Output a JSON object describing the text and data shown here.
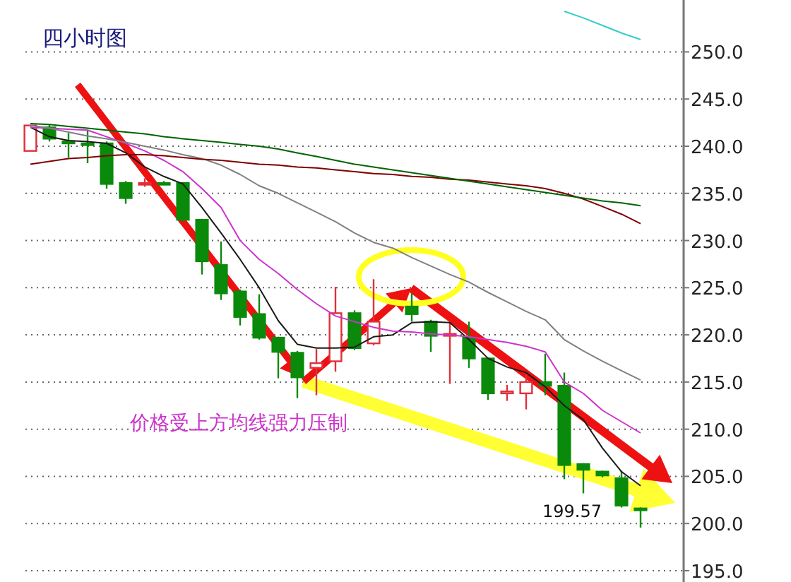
{
  "chart_data": {
    "type": "candlestick",
    "title": "四小时图",
    "annotations": [
      "价格受上方均线强力压制",
      "199.57"
    ],
    "categories": [
      null,
      null,
      null,
      null,
      null,
      null,
      null,
      null,
      null,
      null,
      null,
      null,
      null,
      null,
      null,
      null,
      null,
      null,
      null,
      null,
      null,
      null,
      null,
      null,
      null,
      null,
      null,
      null,
      null,
      null,
      null,
      null,
      null
    ],
    "ohlc": [
      [
        239.5,
        242.2,
        239.5,
        242.2
      ],
      [
        242.0,
        242.3,
        240.5,
        240.8
      ],
      [
        240.5,
        241.4,
        238.8,
        240.3
      ],
      [
        240.3,
        241.7,
        238.2,
        240.2
      ],
      [
        240.3,
        240.5,
        235.5,
        236.0
      ],
      [
        236.1,
        236.3,
        233.9,
        234.5
      ],
      [
        236.0,
        236.6,
        235.7,
        236.1
      ],
      [
        236.1,
        236.3,
        235.9,
        236.0
      ],
      [
        236.1,
        236.2,
        232.0,
        232.2
      ],
      [
        232.2,
        232.3,
        226.4,
        227.8
      ],
      [
        227.4,
        229.9,
        223.7,
        224.4
      ],
      [
        224.6,
        224.8,
        221.0,
        221.9
      ],
      [
        222.2,
        224.3,
        219.5,
        219.7
      ],
      [
        219.7,
        219.8,
        215.4,
        218.2
      ],
      [
        218.1,
        218.3,
        213.3,
        215.5
      ],
      [
        216.5,
        218.5,
        213.6,
        217.0
      ],
      [
        217.2,
        225.1,
        216.1,
        222.3
      ],
      [
        222.3,
        222.6,
        218.4,
        218.6
      ],
      [
        219.1,
        225.9,
        218.9,
        221.4
      ],
      null,
      [
        223.0,
        224.4,
        221.4,
        222.2
      ],
      [
        221.4,
        221.6,
        218.2,
        219.9
      ],
      [
        219.9,
        221.4,
        214.8,
        220.1
      ],
      [
        219.7,
        221.4,
        216.5,
        217.5
      ],
      [
        217.5,
        217.6,
        213.1,
        213.8
      ],
      [
        213.8,
        214.7,
        213.0,
        214.0
      ],
      [
        213.8,
        215.8,
        212.1,
        215.0
      ],
      [
        215.0,
        218.0,
        213.6,
        214.6
      ],
      [
        214.6,
        216.0,
        204.7,
        206.2
      ],
      [
        206.3,
        206.4,
        203.2,
        205.7
      ],
      [
        205.5,
        205.6,
        204.9,
        205.1
      ],
      [
        204.8,
        205.6,
        201.7,
        201.9
      ],
      [
        201.6,
        201.7,
        199.57,
        201.4
      ]
    ],
    "series": [
      {
        "type": "line",
        "color": "#1a1a1a",
        "values": [
          242.0,
          241.0,
          240.6,
          240.5,
          240.3,
          239.3,
          237.8,
          236.8,
          236.0,
          233.5,
          230.8,
          228.0,
          225.0,
          221.5,
          219.0,
          218.6,
          218.6,
          218.7,
          219.8,
          220.0,
          221.3,
          221.4,
          221.3,
          219.5,
          217.5,
          216.6,
          216.0,
          214.5,
          212.5,
          211.0,
          208.0,
          205.5,
          204.0
        ]
      },
      {
        "type": "line",
        "color": "#cc33cc",
        "values": [
          242.0,
          241.9,
          241.8,
          241.7,
          241.0,
          240.3,
          239.5,
          238.5,
          237.3,
          235.5,
          233.5,
          230.0,
          228.0,
          226.5,
          224.8,
          223.3,
          222.0,
          221.4,
          220.8,
          220.4,
          220.3,
          220.1,
          220.0,
          219.8,
          219.5,
          219.2,
          218.8,
          218.2,
          215.0,
          213.8,
          212.0,
          210.8,
          209.6
        ]
      },
      {
        "type": "line",
        "color": "#808080",
        "values": [
          242.2,
          241.9,
          241.5,
          241.1,
          240.8,
          240.4,
          240.0,
          239.6,
          239.1,
          238.7,
          238.0,
          237.0,
          235.8,
          235.0,
          234.0,
          233.0,
          232.0,
          230.8,
          229.8,
          229.2,
          228.2,
          227.3,
          226.4,
          225.6,
          224.5,
          223.5,
          222.5,
          221.6,
          219.5,
          218.3,
          217.2,
          216.2,
          215.2
        ]
      },
      {
        "type": "line",
        "color": "#800000",
        "values": [
          238.1,
          238.4,
          238.7,
          238.8,
          239.0,
          239.1,
          239.1,
          239.0,
          238.8,
          238.6,
          238.5,
          238.3,
          238.1,
          238.0,
          237.8,
          237.7,
          237.5,
          237.3,
          237.1,
          237.0,
          236.8,
          236.7,
          236.5,
          236.4,
          236.2,
          236.0,
          235.8,
          235.5,
          235.0,
          234.4,
          233.6,
          232.8,
          231.8
        ]
      },
      {
        "type": "line",
        "color": "#006400",
        "values": [
          242.4,
          242.3,
          242.1,
          241.9,
          241.7,
          241.5,
          241.3,
          241.0,
          240.8,
          240.6,
          240.4,
          240.2,
          240.0,
          239.7,
          239.3,
          238.9,
          238.5,
          238.1,
          237.8,
          237.5,
          237.2,
          236.9,
          236.6,
          236.3,
          236.0,
          235.7,
          235.4,
          235.1,
          234.8,
          234.5,
          234.2,
          234.0,
          233.7
        ]
      },
      {
        "type": "line",
        "color": "#33cccc",
        "values": [
          null,
          null,
          null,
          null,
          null,
          null,
          null,
          null,
          null,
          null,
          null,
          null,
          null,
          null,
          null,
          null,
          null,
          null,
          null,
          null,
          null,
          null,
          null,
          null,
          null,
          null,
          null,
          null,
          254.3,
          253.6,
          252.8,
          252.0,
          251.3
        ]
      }
    ],
    "ylim": [
      193.8,
      255.5
    ],
    "yticks": [
      {
        "value": 195,
        "label": "195.0"
      },
      {
        "value": 200,
        "label": "200.0"
      },
      {
        "value": 205,
        "label": "205.0"
      },
      {
        "value": 210,
        "label": "210.0"
      },
      {
        "value": 215,
        "label": "215.0"
      },
      {
        "value": 220,
        "label": "220.0"
      },
      {
        "value": 225,
        "label": "225.0"
      },
      {
        "value": 230,
        "label": "230.0"
      },
      {
        "value": 235,
        "label": "235.0"
      },
      {
        "value": 240,
        "label": "240.0"
      },
      {
        "value": 245,
        "label": "245.0"
      },
      {
        "value": 250,
        "label": "250.0"
      }
    ],
    "grid": "y",
    "tick_labels": "y"
  }
}
